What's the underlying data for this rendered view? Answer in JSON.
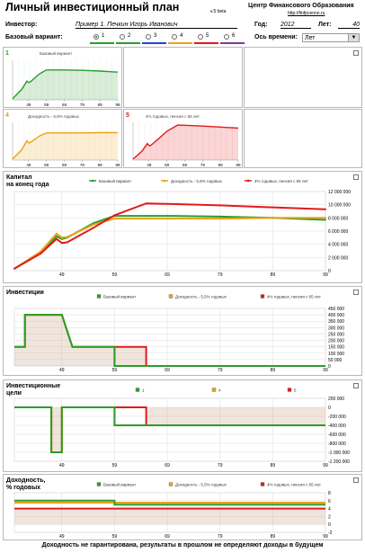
{
  "header": {
    "title": "Личный инвестиционный план",
    "version": "v.5 beta",
    "org": "Центр Финансового Образования",
    "url": "http://finfpcenno.ru"
  },
  "form": {
    "investor_label": "Инвестор:",
    "investor_value": "Пример 1. Печкин Игорь Иванович",
    "year_label": "Год:",
    "year_value": "2012",
    "age_label": "Лет:",
    "age_value": "40",
    "base_variant_label": "Базовый вариант:",
    "variants": [
      "1",
      "2",
      "3",
      "4",
      "5",
      "6"
    ],
    "variant_colors": [
      "#2a9d2a",
      "#2a9d2a",
      "#2244cc",
      "#e8a317",
      "#e21a1a",
      "#7d3c98"
    ],
    "axis_label": "Ось времени:",
    "axis_value": "Лет"
  },
  "mini_charts": [
    {
      "num": "1",
      "caption": "Базовый вариант",
      "color": "#2a9d2a"
    },
    {
      "num": "4",
      "caption": "Доходность - 5,5% годовых",
      "color": "#e8a317"
    },
    {
      "num": "5",
      "caption": "4% годовых, пенсия с 65 лет",
      "color": "#e21a1a"
    }
  ],
  "mini_x_ticks": [
    "49",
    "59",
    "69",
    "79",
    "89",
    "99"
  ],
  "legend": {
    "s1": "Базовый вариант",
    "s4": "Доходность - 5,5% годовых",
    "s5": "4% годовых, пенсия с 65 лет"
  },
  "legend_short": [
    "1",
    "4",
    "5"
  ],
  "x_ticks": [
    "49",
    "59",
    "69",
    "79",
    "89",
    "99"
  ],
  "panels": {
    "capital": {
      "title1": "Капитал",
      "title2": "на конец года",
      "y_ticks": [
        "12 000 000",
        "10 000 000",
        "8 000 000",
        "6 000 000",
        "4 000 000",
        "2 000 000",
        "0"
      ]
    },
    "invest": {
      "title": "Инвестиции",
      "y_ticks": [
        "450 000",
        "400 000",
        "350 000",
        "300 000",
        "250 000",
        "200 000",
        "150 000",
        "100 000",
        "50 000",
        "0"
      ]
    },
    "goals": {
      "title1": "Инвестиционные",
      "title2": "цели",
      "y_ticks": [
        "200 000",
        "0",
        "-200 000",
        "-400 000",
        "-600 000",
        "-800 000",
        "-1 000 000",
        "-1 200 000"
      ]
    },
    "yield": {
      "title1": "Доходность,",
      "title2": "% годовых",
      "y_ticks": [
        "8",
        "6",
        "4",
        "2",
        "0",
        "-2"
      ]
    }
  },
  "footer": "Доходность не гарантирована, результаты в прошлом не определяют доходы в будущем",
  "chart_data": [
    {
      "type": "line",
      "title": "Капитал на конец года",
      "x": [
        40,
        45,
        48,
        49,
        50,
        55,
        59,
        65,
        70,
        79,
        89,
        99
      ],
      "ylim": [
        0,
        12000000
      ],
      "series": [
        {
          "name": "Базовый вариант",
          "color": "#2a9d2a",
          "values": [
            300000,
            2800000,
            5200000,
            4800000,
            5000000,
            7200000,
            8300000,
            8300000,
            8300000,
            8200000,
            8000000,
            7700000
          ]
        },
        {
          "name": "Доходность - 5,5% годовых",
          "color": "#e8a317",
          "values": [
            300000,
            2900000,
            5600000,
            5000000,
            5100000,
            7000000,
            7900000,
            7900000,
            7900000,
            7900000,
            8000000,
            8000000
          ]
        },
        {
          "name": "4% годовых, пенсия с 65 лет",
          "color": "#e21a1a",
          "values": [
            300000,
            2600000,
            4800000,
            4200000,
            4300000,
            6500000,
            8400000,
            10200000,
            10100000,
            9900000,
            9600000,
            9300000
          ]
        }
      ]
    },
    {
      "type": "area",
      "title": "Инвестиции",
      "ylim": [
        0,
        450000
      ],
      "series": [
        {
          "name": "Базовый вариант",
          "values": [
            [
              40,
              150000
            ],
            [
              42,
              150000
            ],
            [
              42,
              400000
            ],
            [
              49,
              400000
            ],
            [
              51,
              150000
            ],
            [
              59,
              150000
            ],
            [
              59,
              0
            ],
            [
              99,
              0
            ]
          ]
        },
        {
          "name": "Доходность - 5,5% годовых",
          "values": [
            [
              40,
              150000
            ],
            [
              42,
              150000
            ],
            [
              42,
              400000
            ],
            [
              49,
              400000
            ],
            [
              51,
              150000
            ],
            [
              59,
              150000
            ],
            [
              59,
              0
            ],
            [
              99,
              0
            ]
          ]
        },
        {
          "name": "4% годовых, пенсия с 65 лет",
          "values": [
            [
              40,
              150000
            ],
            [
              42,
              150000
            ],
            [
              42,
              400000
            ],
            [
              49,
              400000
            ],
            [
              51,
              150000
            ],
            [
              65,
              150000
            ],
            [
              65,
              0
            ],
            [
              99,
              0
            ]
          ]
        }
      ]
    },
    {
      "type": "area",
      "title": "Инвестиционные цели",
      "ylim": [
        -1200000,
        200000
      ],
      "series": [
        {
          "name": "1",
          "values": [
            [
              40,
              0
            ],
            [
              47,
              0
            ],
            [
              47,
              -1000000
            ],
            [
              49,
              -1000000
            ],
            [
              49,
              0
            ],
            [
              59,
              0
            ],
            [
              59,
              -400000
            ],
            [
              99,
              -400000
            ]
          ]
        },
        {
          "name": "4",
          "values": [
            [
              40,
              0
            ],
            [
              47,
              0
            ],
            [
              47,
              -1000000
            ],
            [
              49,
              -1000000
            ],
            [
              49,
              0
            ],
            [
              59,
              0
            ],
            [
              59,
              -400000
            ],
            [
              99,
              -400000
            ]
          ]
        },
        {
          "name": "5",
          "values": [
            [
              40,
              0
            ],
            [
              47,
              0
            ],
            [
              47,
              -1000000
            ],
            [
              49,
              -1000000
            ],
            [
              49,
              0
            ],
            [
              65,
              0
            ],
            [
              65,
              -400000
            ],
            [
              99,
              -400000
            ]
          ]
        }
      ]
    },
    {
      "type": "line",
      "title": "Доходность, % годовых",
      "ylim": [
        -2,
        8
      ],
      "series": [
        {
          "name": "Базовый вариант",
          "values": [
            [
              40,
              6
            ],
            [
              59,
              6
            ],
            [
              59,
              5
            ],
            [
              99,
              5
            ]
          ]
        },
        {
          "name": "Доходность - 5,5% годовых",
          "values": [
            [
              40,
              5.5
            ],
            [
              99,
              5.5
            ]
          ]
        },
        {
          "name": "4% годовых, пенсия с 65 лет",
          "values": [
            [
              40,
              4
            ],
            [
              99,
              4
            ]
          ]
        }
      ]
    }
  ]
}
